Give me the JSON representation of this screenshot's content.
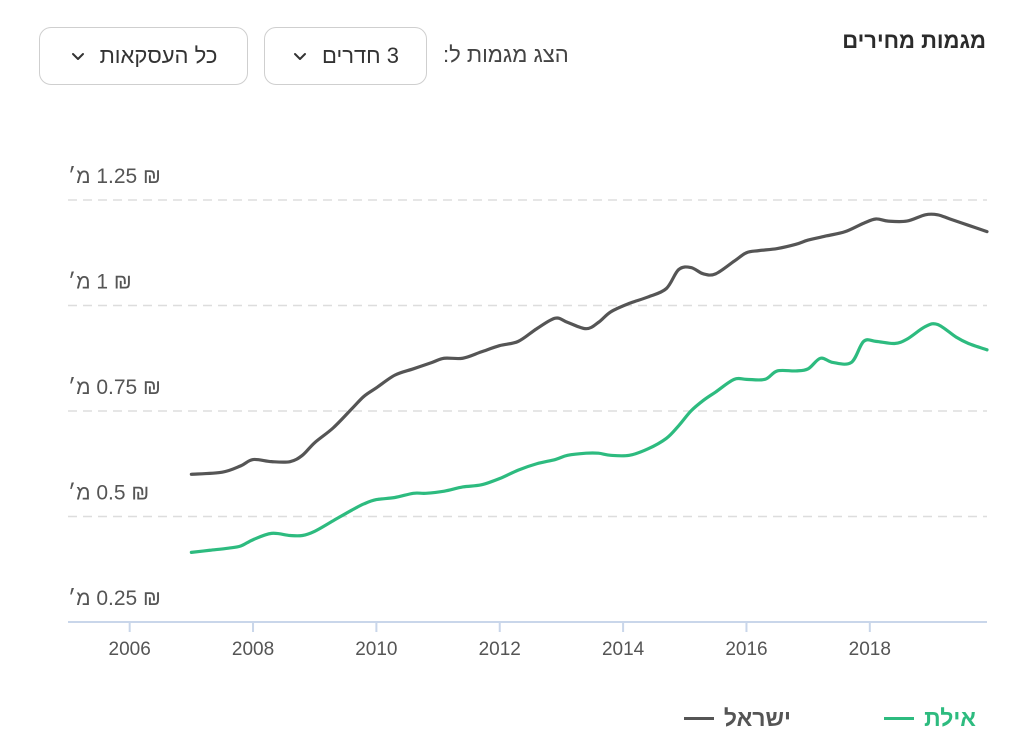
{
  "header": {
    "title": "מגמות מחירים",
    "show_label": "הצג מגמות ל:",
    "rooms_value": "3 חדרים",
    "deals_value": "כל העסקאות"
  },
  "colors": {
    "eilat": "#2dbb7f",
    "israel": "#555555",
    "grid": "#dddddd",
    "axis": "#c9d6ea"
  },
  "legend": {
    "eilat": "אילת",
    "israel": "ישראל"
  },
  "chart_data": {
    "type": "line",
    "ylim": [
      0.25,
      1.25
    ],
    "xlim": [
      2005.0,
      2019.9
    ],
    "yticks": [
      1.25,
      1,
      0.75,
      0.5,
      0.25
    ],
    "ytick_labels": [
      "₪ 1.25 מ׳",
      "₪ 1 מ׳",
      "₪ 0.75 מ׳",
      "₪ 0.5 מ׳",
      "₪ 0.25 מ׳"
    ],
    "xticks": [
      2006,
      2008,
      2010,
      2012,
      2014,
      2016,
      2018
    ],
    "xtick_labels": [
      "2006",
      "2008",
      "2010",
      "2012",
      "2014",
      "2016",
      "2018"
    ],
    "grid": true,
    "legend_position": "bottom-right",
    "series": [
      {
        "name": "ישראל",
        "color": "#555555",
        "x": [
          2007.0,
          2007.5,
          2007.8,
          2008.0,
          2008.3,
          2008.6,
          2008.8,
          2009.0,
          2009.3,
          2009.6,
          2009.8,
          2010.0,
          2010.3,
          2010.6,
          2010.9,
          2011.1,
          2011.4,
          2011.7,
          2012.0,
          2012.3,
          2012.6,
          2012.9,
          2013.1,
          2013.4,
          2013.6,
          2013.8,
          2014.1,
          2014.4,
          2014.7,
          2014.9,
          2015.1,
          2015.3,
          2015.5,
          2015.8,
          2016.0,
          2016.2,
          2016.5,
          2016.8,
          2017.0,
          2017.3,
          2017.6,
          2017.9,
          2018.1,
          2018.3,
          2018.6,
          2018.9,
          2019.1,
          2019.3,
          2019.6,
          2019.9
        ],
        "y": [
          0.55,
          0.555,
          0.57,
          0.585,
          0.58,
          0.58,
          0.595,
          0.625,
          0.66,
          0.705,
          0.735,
          0.755,
          0.785,
          0.8,
          0.815,
          0.825,
          0.825,
          0.84,
          0.855,
          0.865,
          0.895,
          0.92,
          0.91,
          0.895,
          0.91,
          0.935,
          0.955,
          0.97,
          0.99,
          1.035,
          1.04,
          1.025,
          1.025,
          1.055,
          1.075,
          1.08,
          1.085,
          1.095,
          1.105,
          1.115,
          1.125,
          1.145,
          1.155,
          1.15,
          1.15,
          1.165,
          1.165,
          1.155,
          1.14,
          1.125
        ]
      },
      {
        "name": "אילת",
        "color": "#2dbb7f",
        "x": [
          2007.0,
          2007.3,
          2007.6,
          2007.8,
          2008.0,
          2008.3,
          2008.6,
          2008.8,
          2009.0,
          2009.3,
          2009.6,
          2009.8,
          2010.0,
          2010.3,
          2010.6,
          2010.8,
          2011.1,
          2011.4,
          2011.7,
          2012.0,
          2012.3,
          2012.6,
          2012.9,
          2013.1,
          2013.4,
          2013.6,
          2013.8,
          2014.1,
          2014.4,
          2014.7,
          2014.9,
          2015.1,
          2015.3,
          2015.5,
          2015.8,
          2016.0,
          2016.3,
          2016.5,
          2016.8,
          2017.0,
          2017.2,
          2017.4,
          2017.7,
          2017.9,
          2018.1,
          2018.4,
          2018.6,
          2018.9,
          2019.1,
          2019.4,
          2019.6,
          2019.9
        ],
        "y": [
          0.365,
          0.37,
          0.375,
          0.38,
          0.395,
          0.41,
          0.405,
          0.405,
          0.415,
          0.44,
          0.465,
          0.48,
          0.49,
          0.495,
          0.505,
          0.505,
          0.51,
          0.52,
          0.525,
          0.54,
          0.56,
          0.575,
          0.585,
          0.595,
          0.6,
          0.6,
          0.595,
          0.595,
          0.61,
          0.635,
          0.665,
          0.7,
          0.725,
          0.745,
          0.775,
          0.775,
          0.775,
          0.795,
          0.795,
          0.8,
          0.825,
          0.815,
          0.815,
          0.865,
          0.865,
          0.86,
          0.87,
          0.9,
          0.905,
          0.875,
          0.86,
          0.845
        ]
      }
    ]
  }
}
